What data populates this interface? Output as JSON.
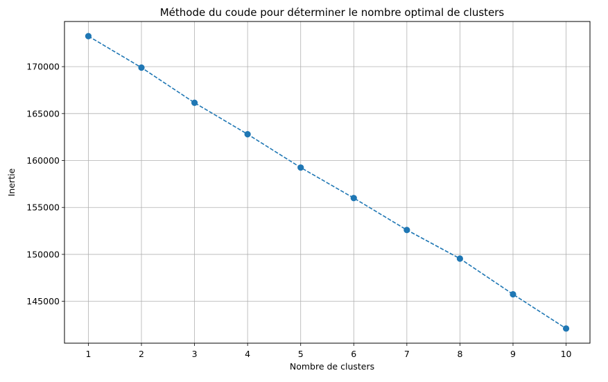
{
  "chart_data": {
    "type": "line",
    "title": "Méthode du coude pour déterminer le nombre optimal de clusters",
    "xlabel": "Nombre de clusters",
    "ylabel": "Inertie",
    "x": [
      1,
      2,
      3,
      4,
      5,
      6,
      7,
      8,
      9,
      10
    ],
    "series": [
      {
        "values": [
          173250,
          169900,
          166150,
          162800,
          159250,
          156000,
          152600,
          149550,
          145750,
          142100
        ],
        "color": "#1f77b4",
        "line_style": "dashed",
        "marker": "circle"
      }
    ],
    "xticks": [
      "1",
      "2",
      "3",
      "4",
      "5",
      "6",
      "7",
      "8",
      "9",
      "10"
    ],
    "yticks": [
      {
        "value": 145000,
        "label": "145000"
      },
      {
        "value": 150000,
        "label": "150000"
      },
      {
        "value": 155000,
        "label": "155000"
      },
      {
        "value": 160000,
        "label": "160000"
      },
      {
        "value": 165000,
        "label": "165000"
      },
      {
        "value": 170000,
        "label": "170000"
      }
    ],
    "xlim": [
      0.55,
      10.45
    ],
    "ylim": [
      140540,
      174810
    ],
    "grid": true,
    "grid_color": "#b0b0b0"
  }
}
